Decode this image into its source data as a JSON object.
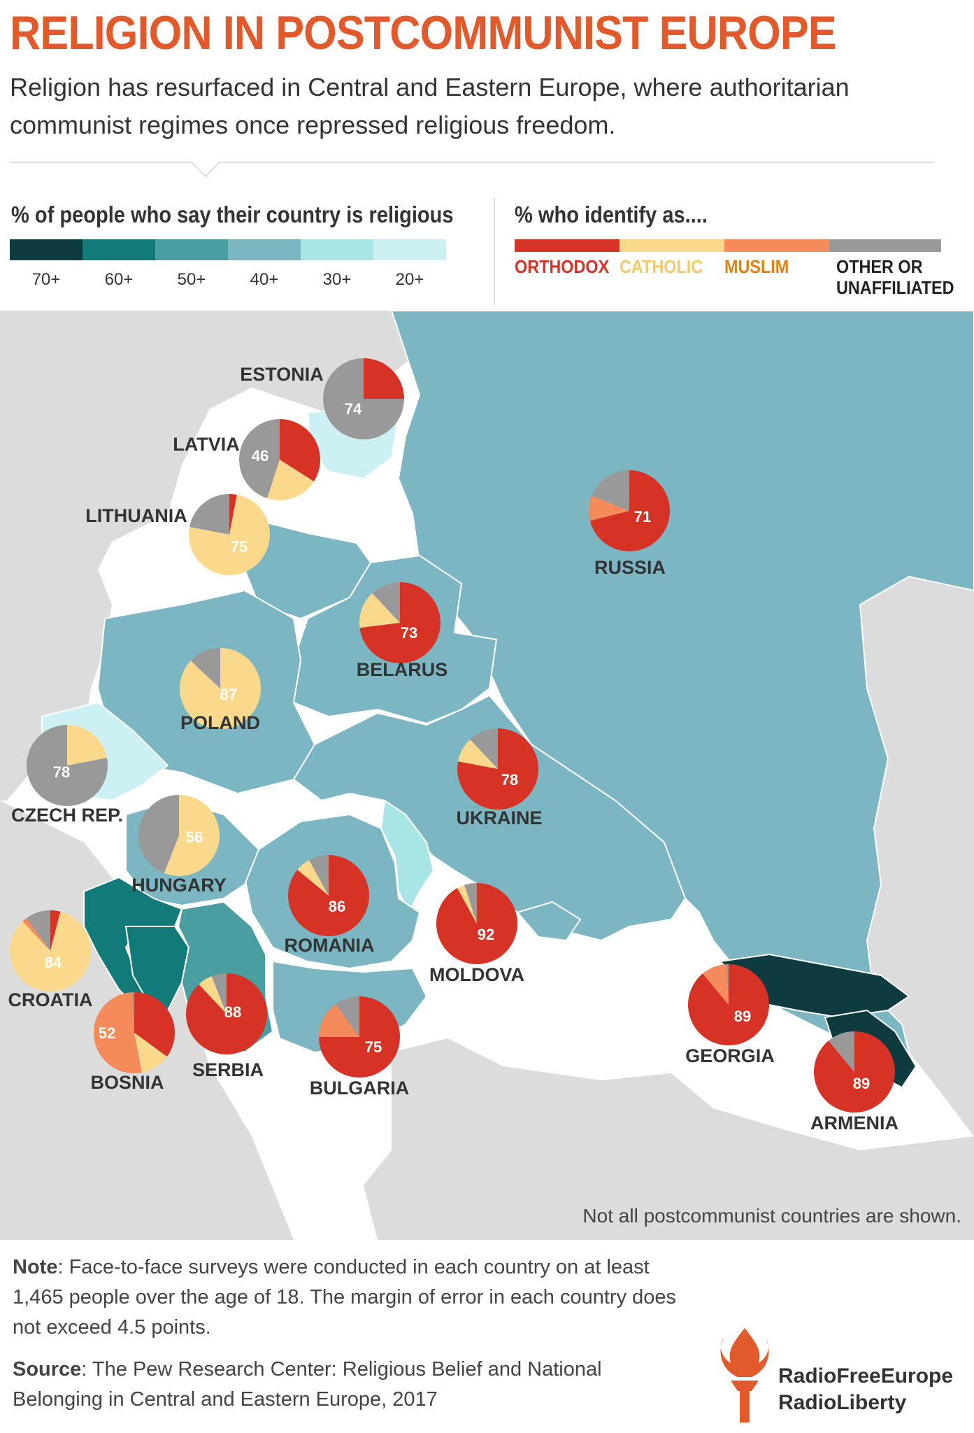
{
  "title": "RELIGION IN POSTCOMMUNIST EUROPE",
  "subtitle": "Religion has resurfaced in Central and Eastern Europe, where authoritarian communist regimes once repressed religious freedom.",
  "legend_religious": {
    "title": "% of people who say their country is religious",
    "bins": [
      {
        "label": "70+",
        "color": "#0d3b40"
      },
      {
        "label": "60+",
        "color": "#137a7a"
      },
      {
        "label": "50+",
        "color": "#4a9da0"
      },
      {
        "label": "40+",
        "color": "#7bb6c2"
      },
      {
        "label": "30+",
        "color": "#a8e6e6"
      },
      {
        "label": "20+",
        "color": "#cdf0f5"
      }
    ]
  },
  "legend_identify": {
    "title": "% who identify as....",
    "categories": [
      {
        "label": "ORTHODOX",
        "color": "#d63226",
        "text_color": "#d63226"
      },
      {
        "label": "CATHOLIC",
        "color": "#fbd98c",
        "text_color": "#f4c96b"
      },
      {
        "label": "MUSLIM",
        "color": "#f58a5a",
        "text_color": "#e07f12"
      },
      {
        "label": "OTHER OR\nUNAFFILIATED",
        "color": "#999999",
        "text_color": "#222222"
      }
    ]
  },
  "countries": [
    {
      "name": "ESTONIA",
      "value": "74",
      "dominant": "other",
      "slices": [
        [
          "orthodox",
          25
        ],
        [
          "other",
          75
        ]
      ]
    },
    {
      "name": "LATVIA",
      "value": "46",
      "dominant": "other",
      "slices": [
        [
          "orthodox",
          34
        ],
        [
          "catholic",
          21
        ],
        [
          "other",
          45
        ]
      ]
    },
    {
      "name": "LITHUANIA",
      "value": "75",
      "dominant": "catholic",
      "slices": [
        [
          "orthodox",
          3
        ],
        [
          "catholic",
          75
        ],
        [
          "other",
          22
        ]
      ]
    },
    {
      "name": "RUSSIA",
      "value": "71",
      "dominant": "orthodox",
      "slices": [
        [
          "orthodox",
          71
        ],
        [
          "muslim",
          10
        ],
        [
          "other",
          19
        ]
      ]
    },
    {
      "name": "BELARUS",
      "value": "73",
      "dominant": "orthodox",
      "slices": [
        [
          "orthodox",
          73
        ],
        [
          "catholic",
          15
        ],
        [
          "other",
          12
        ]
      ]
    },
    {
      "name": "POLAND",
      "value": "87",
      "dominant": "catholic",
      "slices": [
        [
          "catholic",
          87
        ],
        [
          "other",
          13
        ]
      ]
    },
    {
      "name": "CZECH REP.",
      "value": "78",
      "dominant": "other",
      "slices": [
        [
          "catholic",
          22
        ],
        [
          "other",
          78
        ]
      ]
    },
    {
      "name": "UKRAINE",
      "value": "78",
      "dominant": "orthodox",
      "slices": [
        [
          "orthodox",
          78
        ],
        [
          "catholic",
          10
        ],
        [
          "other",
          12
        ]
      ]
    },
    {
      "name": "HUNGARY",
      "value": "56",
      "dominant": "catholic",
      "slices": [
        [
          "catholic",
          56
        ],
        [
          "other",
          44
        ]
      ]
    },
    {
      "name": "ROMANIA",
      "value": "86",
      "dominant": "orthodox",
      "slices": [
        [
          "orthodox",
          86
        ],
        [
          "catholic",
          6
        ],
        [
          "other",
          8
        ]
      ]
    },
    {
      "name": "MOLDOVA",
      "value": "92",
      "dominant": "orthodox",
      "slices": [
        [
          "orthodox",
          92
        ],
        [
          "catholic",
          3
        ],
        [
          "other",
          5
        ]
      ]
    },
    {
      "name": "CROATIA",
      "value": "84",
      "dominant": "catholic",
      "slices": [
        [
          "orthodox",
          4
        ],
        [
          "catholic",
          84
        ],
        [
          "muslim",
          2
        ],
        [
          "other",
          10
        ]
      ]
    },
    {
      "name": "BOSNIA",
      "value": "52",
      "dominant": "muslim",
      "slices": [
        [
          "orthodox",
          35
        ],
        [
          "catholic",
          12
        ],
        [
          "muslim",
          52
        ],
        [
          "other",
          1
        ]
      ]
    },
    {
      "name": "SERBIA",
      "value": "88",
      "dominant": "orthodox",
      "slices": [
        [
          "orthodox",
          88
        ],
        [
          "catholic",
          6
        ],
        [
          "other",
          6
        ]
      ]
    },
    {
      "name": "BULGARIA",
      "value": "75",
      "dominant": "orthodox",
      "slices": [
        [
          "orthodox",
          75
        ],
        [
          "muslim",
          15
        ],
        [
          "other",
          10
        ]
      ]
    },
    {
      "name": "GEORGIA",
      "value": "89",
      "dominant": "orthodox",
      "slices": [
        [
          "orthodox",
          89
        ],
        [
          "muslim",
          10
        ],
        [
          "other",
          1
        ]
      ]
    },
    {
      "name": "ARMENIA",
      "value": "89",
      "dominant": "orthodox",
      "slices": [
        [
          "orthodox",
          89
        ],
        [
          "other",
          11
        ]
      ]
    }
  ],
  "map_note": "Not all postcommunist countries are shown.",
  "note_label": "Note",
  "note_text": ": Face-to-face surveys were conducted in each country on at least 1,465 people over the age of 18. The margin of error in each country does not exceed 4.5 points.",
  "source_label": "Source",
  "source_text": ": The Pew Research Center: Religious Belief and National Belonging in Central and Eastern Europe, 2017",
  "logo": {
    "line1": "RadioFreeEurope",
    "line2": "RadioLiberty"
  }
}
